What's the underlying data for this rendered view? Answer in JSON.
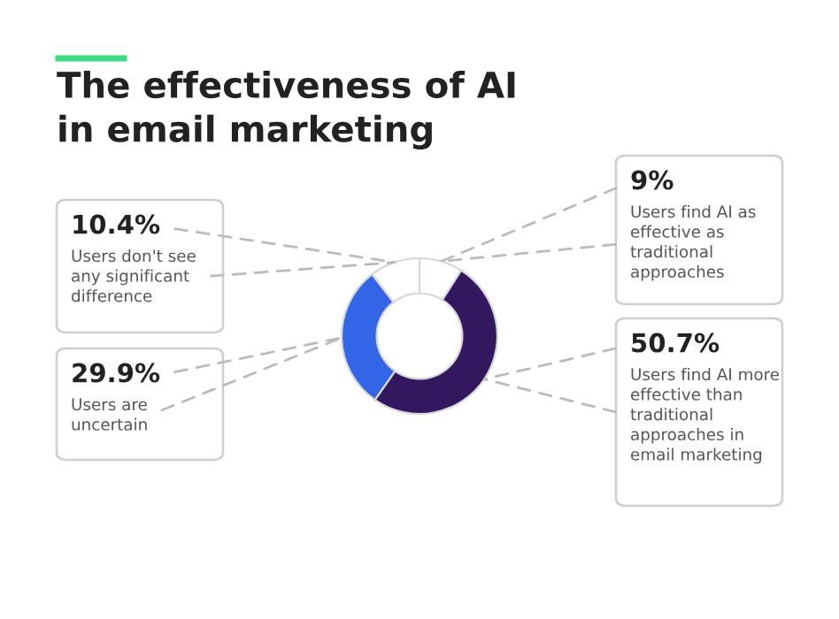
{
  "chart_data": {
    "type": "donut",
    "title": "The effectiveness of AI\nin email marketing",
    "categories": [
      "Users find AI as\neffective as\ntraditional\napproaches",
      "Users find AI more\neffective than\ntraditional\napproaches in\nemail marketing",
      "Users are\nuncertain",
      "Users don't see\nany significant\ndifference"
    ],
    "values": [
      9,
      50.7,
      29.9,
      10.4
    ],
    "value_labels": [
      "9%",
      "50.7%",
      "29.9%",
      "10.4%"
    ],
    "colors": [
      "#ffffff",
      "#32185e",
      "#3366e6",
      "#ffffff"
    ]
  }
}
